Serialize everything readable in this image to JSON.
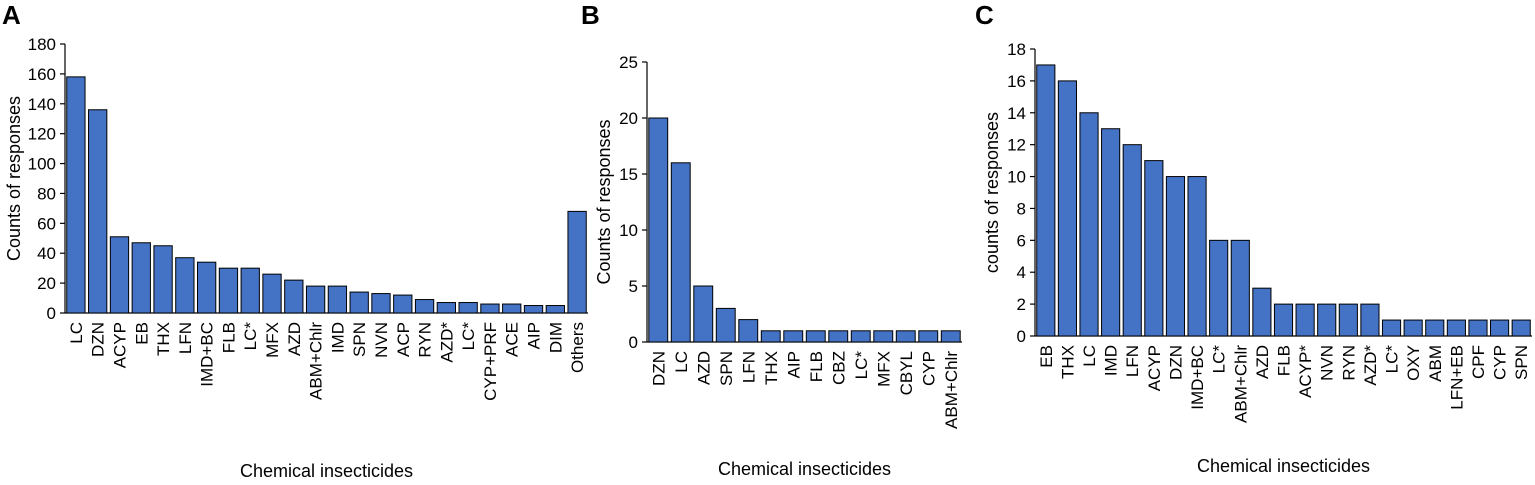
{
  "chart_data": [
    {
      "panel": "A",
      "type": "bar",
      "title": "",
      "xlabel": "Chemical insecticides",
      "ylabel": "Counts of responses",
      "ylim": [
        0,
        180
      ],
      "yticks": [
        0,
        20,
        40,
        60,
        80,
        100,
        120,
        140,
        160,
        180
      ],
      "categories": [
        "LC",
        "DZN",
        "ACYP",
        "EB",
        "THX",
        "LFN",
        "IMD+BC",
        "FLB",
        "LC*",
        "MFX",
        "AZD",
        "ABM+Chlr",
        "IMD",
        "SPN",
        "NVN",
        "ACP",
        "RYN",
        "AZD*",
        "LC*",
        "CYP+PRF",
        "ACE",
        "AIP",
        "DIM",
        "Others"
      ],
      "values": [
        158,
        136,
        51,
        47,
        45,
        37,
        34,
        30,
        30,
        26,
        22,
        18,
        18,
        14,
        13,
        12,
        9,
        7,
        7,
        6,
        6,
        5,
        5,
        68
      ],
      "bar_color": "#4472C4",
      "grid": false
    },
    {
      "panel": "B",
      "type": "bar",
      "title": "",
      "xlabel": "Chemical insecticides",
      "ylabel": "Counts of responses",
      "ylim": [
        0,
        25
      ],
      "yticks": [
        0,
        5,
        10,
        15,
        20,
        25
      ],
      "categories": [
        "DZN",
        "LC",
        "AZD",
        "SPN",
        "LFN",
        "THX",
        "AIP",
        "FLB",
        "CBZ",
        "LC*",
        "MFX",
        "CBYL",
        "CYP",
        "ABM+Chlr"
      ],
      "values": [
        20,
        16,
        5,
        3,
        2,
        1,
        1,
        1,
        1,
        1,
        1,
        1,
        1,
        1
      ],
      "bar_color": "#4472C4",
      "grid": false
    },
    {
      "panel": "C",
      "type": "bar",
      "title": "",
      "xlabel": "Chemical insecticides",
      "ylabel": "counts of responses",
      "ylim": [
        0,
        18
      ],
      "yticks": [
        0,
        2,
        4,
        6,
        8,
        10,
        12,
        14,
        16,
        18
      ],
      "categories": [
        "EB",
        "THX",
        "LC",
        "IMD",
        "LFN",
        "ACYP",
        "DZN",
        "IMD+BC",
        "LC*",
        "ABM+Chlr",
        "AZD",
        "FLB",
        "ACYP*",
        "NVN",
        "RYN",
        "AZD*",
        "LC*",
        "OXY",
        "ABM",
        "LFN+EB",
        "CPF",
        "CYP",
        "SPN"
      ],
      "values": [
        17,
        16,
        14,
        13,
        12,
        11,
        10,
        10,
        6,
        6,
        3,
        2,
        2,
        2,
        2,
        2,
        1,
        1,
        1,
        1,
        1,
        1,
        1
      ],
      "bar_color": "#4472C4",
      "grid": false
    }
  ]
}
